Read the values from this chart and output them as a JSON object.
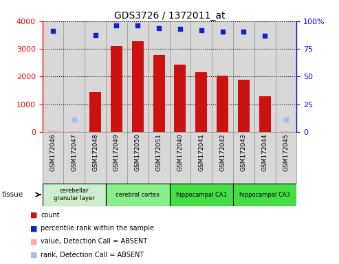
{
  "title": "GDS3726 / 1372011_at",
  "samples": [
    "GSM172046",
    "GSM172047",
    "GSM172048",
    "GSM172049",
    "GSM172050",
    "GSM172051",
    "GSM172040",
    "GSM172041",
    "GSM172042",
    "GSM172043",
    "GSM172044",
    "GSM172045"
  ],
  "count_values": [
    50,
    25,
    1430,
    3110,
    3280,
    2780,
    2440,
    2170,
    2040,
    1880,
    1300,
    25
  ],
  "count_absent": [
    true,
    true,
    false,
    false,
    false,
    false,
    false,
    false,
    false,
    false,
    false,
    true
  ],
  "rank_values": [
    91.0,
    11.2,
    87.5,
    95.8,
    95.8,
    93.5,
    92.8,
    91.5,
    90.5,
    90.8,
    87.0,
    11.2
  ],
  "rank_absent": [
    false,
    true,
    false,
    false,
    false,
    false,
    false,
    false,
    false,
    false,
    false,
    true
  ],
  "ylim_left": [
    0,
    4000
  ],
  "ylim_right": [
    0,
    100
  ],
  "yticks_left": [
    0,
    1000,
    2000,
    3000,
    4000
  ],
  "ytick_labels_left": [
    "0",
    "1000",
    "2000",
    "3000",
    "4000"
  ],
  "yticks_right": [
    0,
    25,
    50,
    75,
    100
  ],
  "ytick_labels_right": [
    "0",
    "25",
    "50",
    "75",
    "100%"
  ],
  "tissues": [
    {
      "label": "cerebellar\ngranular layer",
      "start": 0,
      "end": 2,
      "color": "#cceecc"
    },
    {
      "label": "cerebral cortex",
      "start": 3,
      "end": 5,
      "color": "#88ee88"
    },
    {
      "label": "hippocampal CA1",
      "start": 6,
      "end": 8,
      "color": "#44dd44"
    },
    {
      "label": "hippocampal CA3",
      "start": 9,
      "end": 11,
      "color": "#44dd44"
    }
  ],
  "bar_color_present": "#cc1111",
  "bar_color_absent": "#ffaaaa",
  "rank_color_present": "#1122cc",
  "rank_color_absent": "#aabbee",
  "col_bg": "#d8d8d8",
  "col_border": "#888888",
  "legend_items": [
    {
      "color": "#cc1111",
      "label": "count",
      "marker": "square"
    },
    {
      "color": "#1122cc",
      "label": "percentile rank within the sample",
      "marker": "square"
    },
    {
      "color": "#ffaaaa",
      "label": "value, Detection Call = ABSENT",
      "marker": "square"
    },
    {
      "color": "#aabbee",
      "label": "rank, Detection Call = ABSENT",
      "marker": "square"
    }
  ]
}
